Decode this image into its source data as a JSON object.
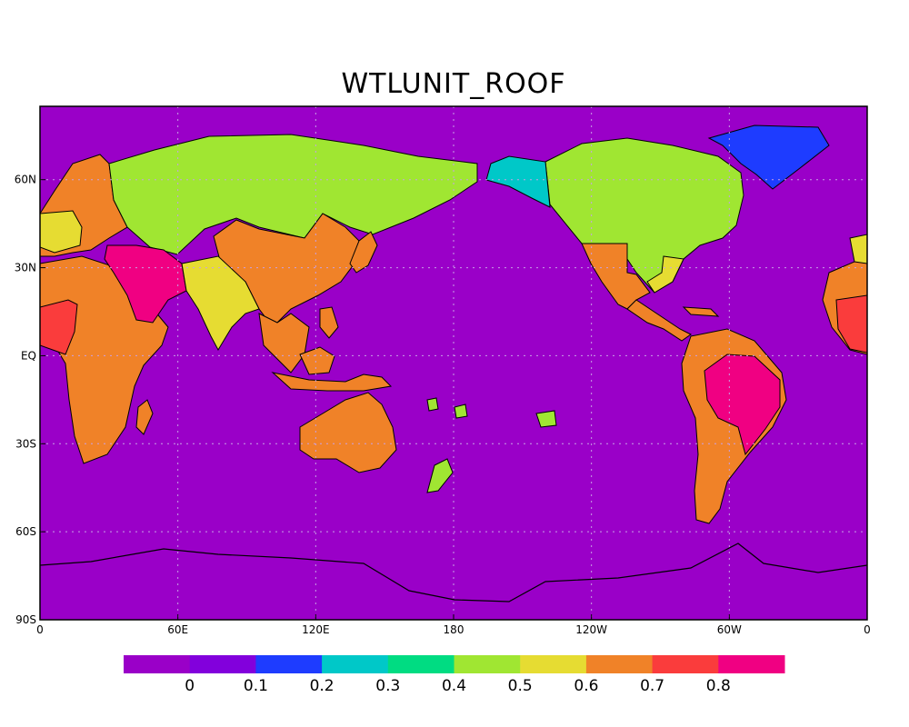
{
  "title": "WTLUNIT_ROOF",
  "map": {
    "background_color": "#9a00c8",
    "projection": "cylindrical equidistant, centered on 180",
    "grid": true
  },
  "axes": {
    "x_ticks": [
      {
        "label": "0",
        "lon": 0
      },
      {
        "label": "60E",
        "lon": 60
      },
      {
        "label": "120E",
        "lon": 120
      },
      {
        "label": "180",
        "lon": 180
      },
      {
        "label": "120W",
        "lon": 240
      },
      {
        "label": "60W",
        "lon": 300
      },
      {
        "label": "0",
        "lon": 360
      }
    ],
    "y_ticks": [
      {
        "label": "60N",
        "lat": 60
      },
      {
        "label": "30N",
        "lat": 30
      },
      {
        "label": "EQ",
        "lat": 0
      },
      {
        "label": "30S",
        "lat": -30
      },
      {
        "label": "60S",
        "lat": -60
      },
      {
        "label": "90S",
        "lat": -90
      }
    ]
  },
  "colorbar": {
    "colors": [
      "#9a00c8",
      "#8200dc",
      "#1e3cff",
      "#00c8c8",
      "#00dc82",
      "#a0e632",
      "#e6dc32",
      "#f08228",
      "#fa3c3c",
      "#f00082"
    ],
    "labels": [
      "0",
      "0.1",
      "0.2",
      "0.3",
      "0.4",
      "0.5",
      "0.6",
      "0.7",
      "0.8"
    ]
  },
  "regions": [
    {
      "name": "north-america",
      "color": "#a0e632",
      "value": 0.45
    },
    {
      "name": "alaska",
      "color": "#00c8c8",
      "value": 0.35
    },
    {
      "name": "greenland",
      "color": "#1e3cff",
      "value": 0.15
    },
    {
      "name": "us-south",
      "color": "#f08228",
      "value": 0.65
    },
    {
      "name": "us-east",
      "color": "#e6dc32",
      "value": 0.55
    },
    {
      "name": "central-america",
      "color": "#f08228",
      "value": 0.65
    },
    {
      "name": "south-america",
      "color": "#f08228",
      "value": 0.65
    },
    {
      "name": "brazil",
      "color": "#f00082",
      "value": 0.85
    },
    {
      "name": "africa",
      "color": "#f08228",
      "value": 0.65
    },
    {
      "name": "west-africa",
      "color": "#fa3c3c",
      "value": 0.75
    },
    {
      "name": "europe",
      "color": "#f08228",
      "value": 0.65
    },
    {
      "name": "middle-east",
      "color": "#f00082",
      "value": 0.85
    },
    {
      "name": "russia",
      "color": "#a0e632",
      "value": 0.45
    },
    {
      "name": "china",
      "color": "#f08228",
      "value": 0.65
    },
    {
      "name": "india",
      "color": "#e6dc32",
      "value": 0.55
    },
    {
      "name": "southeast-asia",
      "color": "#f08228",
      "value": 0.65
    },
    {
      "name": "australia",
      "color": "#f08228",
      "value": 0.65
    }
  ]
}
